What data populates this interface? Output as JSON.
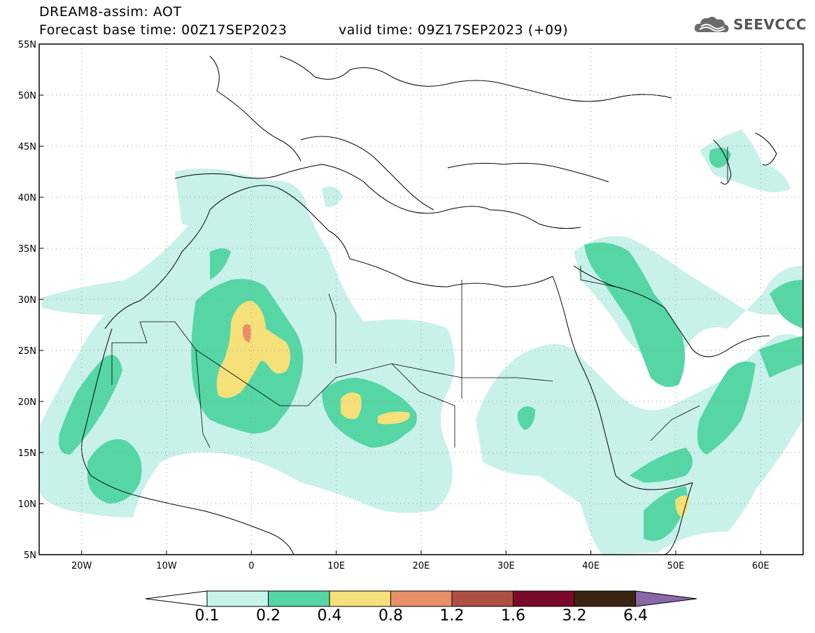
{
  "header": {
    "line1": "DREAM8-assim: AOT",
    "line2_left": "Forecast base time: 00Z17SEP2023",
    "line2_right": "valid time: 09Z17SEP2023 (+09)"
  },
  "logo": {
    "text": "SEEVCCC",
    "icon": "cloud-logo-icon"
  },
  "map": {
    "lon_ticks": [
      "20W",
      "10W",
      "0",
      "10E",
      "20E",
      "30E",
      "40E",
      "50E",
      "60E"
    ],
    "lat_ticks": [
      "55N",
      "50N",
      "45N",
      "40N",
      "35N",
      "30N",
      "25N",
      "20N",
      "15N",
      "10N",
      "5N"
    ],
    "extent": {
      "lon": [
        -25,
        65
      ],
      "lat": [
        5,
        55
      ]
    }
  },
  "colorbar": {
    "labels": [
      "0.1",
      "0.2",
      "0.4",
      "0.8",
      "1.2",
      "1.6",
      "3.2",
      "6.4"
    ],
    "colors": [
      "#ffffff",
      "#c8f1ea",
      "#55d6a4",
      "#f5e07a",
      "#ea8e67",
      "#b05045",
      "#7a0a2a",
      "#3a2412",
      "#8a68a8"
    ]
  }
}
